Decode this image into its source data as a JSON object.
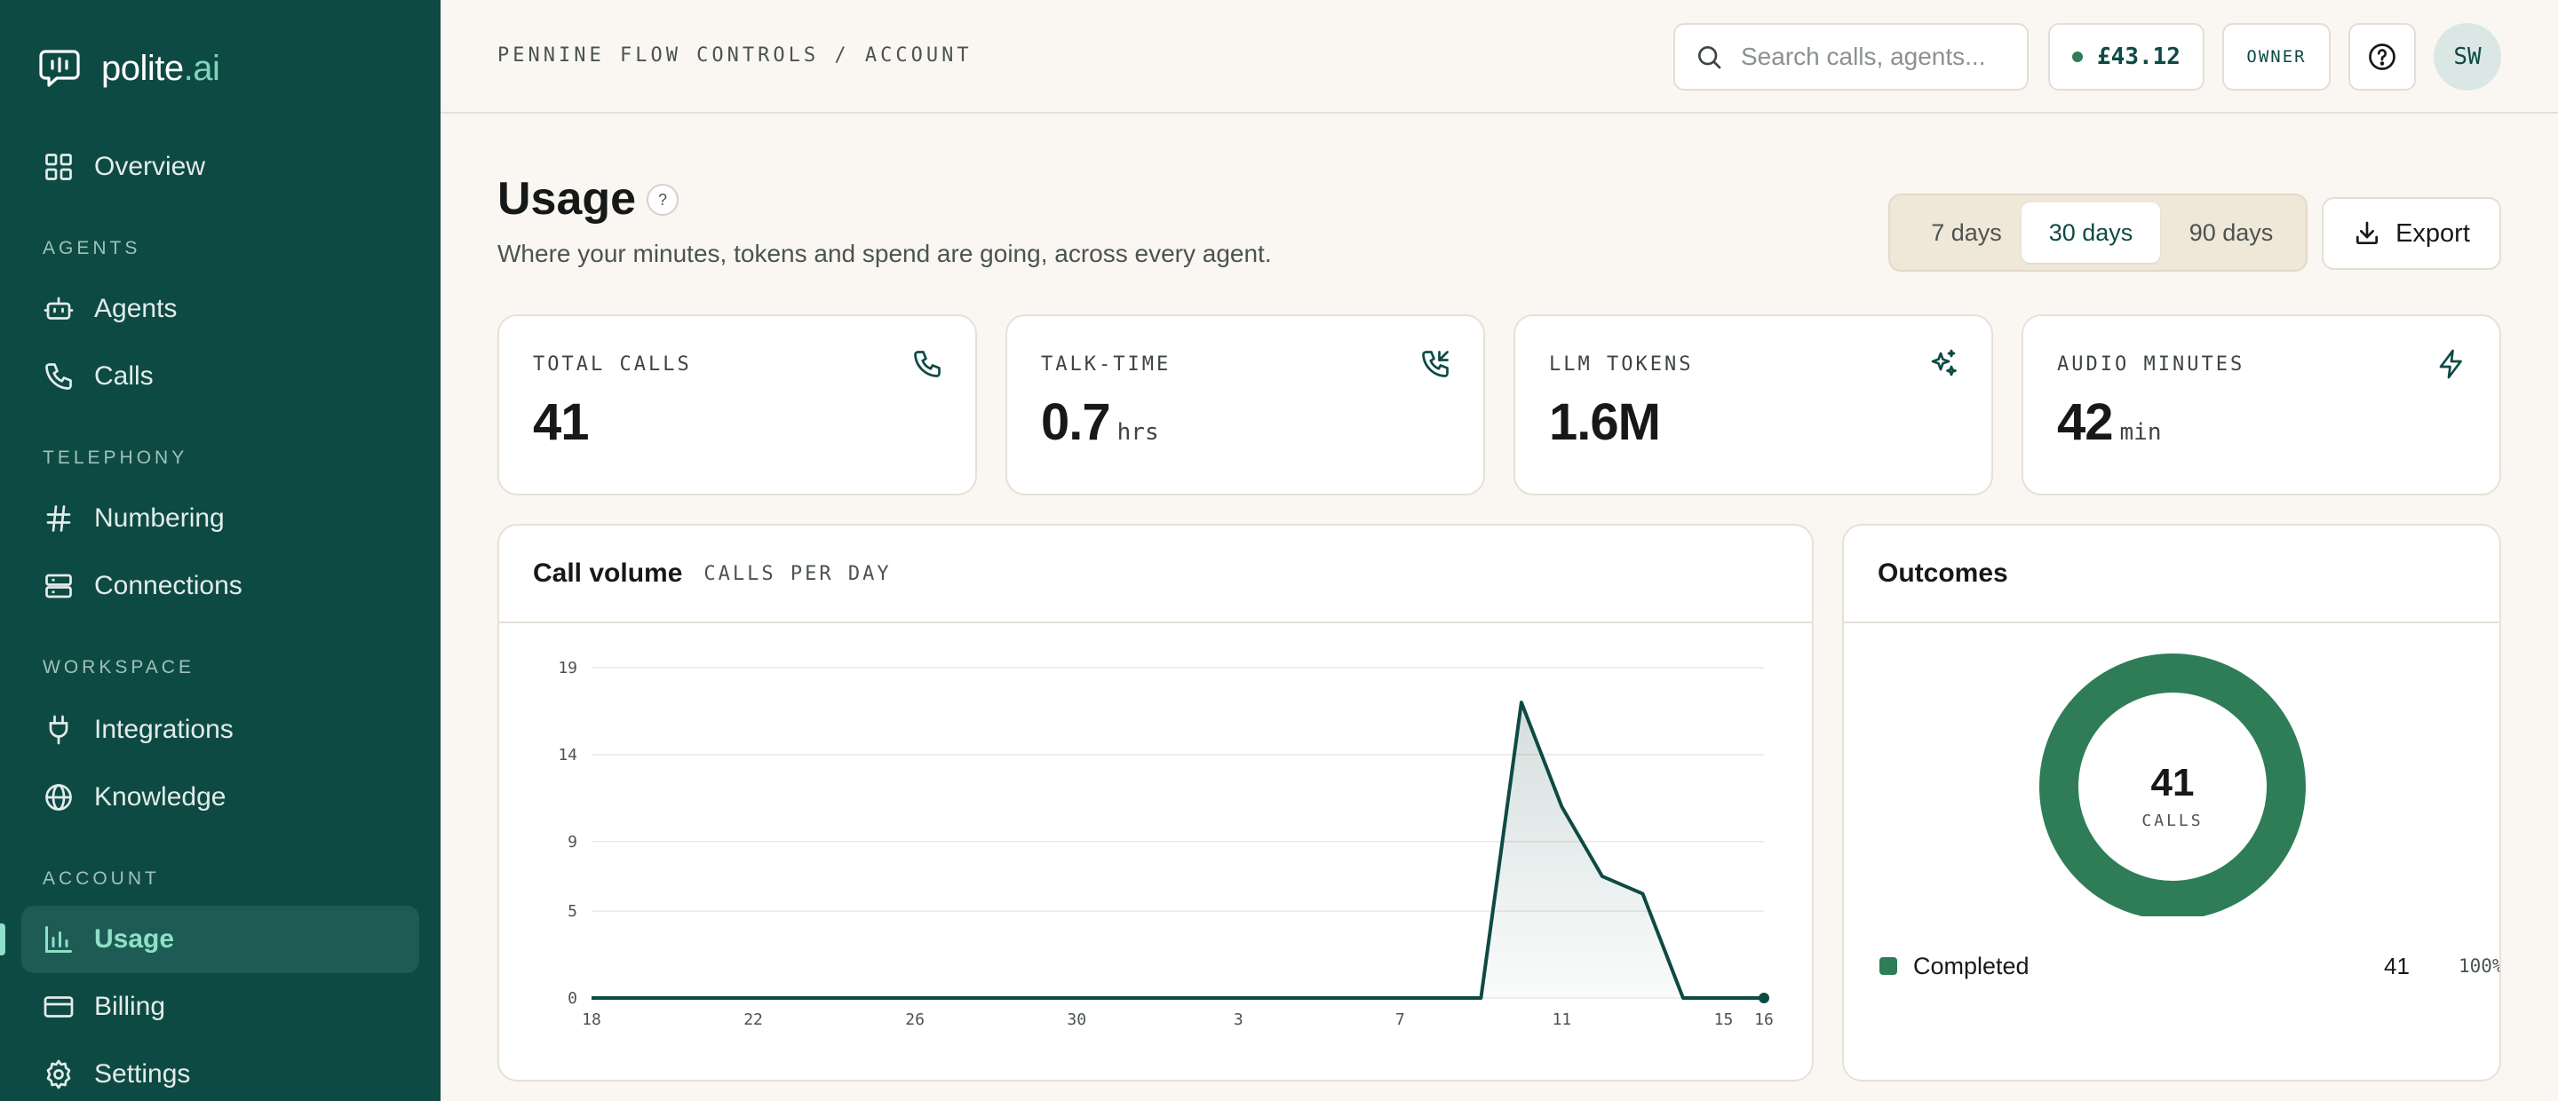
{
  "brand": {
    "name": "polite",
    "suffix": ".ai"
  },
  "sidebar": {
    "top_items": [
      {
        "label": "Overview",
        "icon": "grid-icon"
      }
    ],
    "sections": [
      {
        "title": "AGENTS",
        "items": [
          {
            "label": "Agents",
            "icon": "robot-icon"
          },
          {
            "label": "Calls",
            "icon": "phone-icon"
          }
        ]
      },
      {
        "title": "TELEPHONY",
        "items": [
          {
            "label": "Numbering",
            "icon": "hash-icon"
          },
          {
            "label": "Connections",
            "icon": "server-icon"
          }
        ]
      },
      {
        "title": "WORKSPACE",
        "items": [
          {
            "label": "Integrations",
            "icon": "plug-icon"
          },
          {
            "label": "Knowledge",
            "icon": "globe-icon"
          }
        ]
      },
      {
        "title": "ACCOUNT",
        "items": [
          {
            "label": "Usage",
            "icon": "bar-chart-icon",
            "active": true
          },
          {
            "label": "Billing",
            "icon": "card-icon"
          },
          {
            "label": "Settings",
            "icon": "gear-icon"
          }
        ]
      }
    ]
  },
  "header": {
    "breadcrumb": "PENNINE FLOW CONTROLS / ACCOUNT",
    "search_placeholder": "Search calls, agents...",
    "balance": "£43.12",
    "role": "OWNER",
    "avatar_initials": "SW"
  },
  "page": {
    "title": "Usage",
    "help": "?",
    "subtitle": "Where your minutes, tokens and spend are going, across every agent.",
    "ranges": [
      "7 days",
      "30 days",
      "90 days"
    ],
    "selected_range": "30 days",
    "export_label": "Export"
  },
  "stats": [
    {
      "label": "TOTAL CALLS",
      "value": "41",
      "unit": "",
      "icon": "phone-icon"
    },
    {
      "label": "TALK-TIME",
      "value": "0.7",
      "unit": "hrs",
      "icon": "phone-incoming-icon"
    },
    {
      "label": "LLM TOKENS",
      "value": "1.6M",
      "unit": "",
      "icon": "sparkle-icon"
    },
    {
      "label": "AUDIO MINUTES",
      "value": "42",
      "unit": "min",
      "icon": "bolt-icon"
    }
  ],
  "call_volume": {
    "title": "Call volume",
    "subtitle": "CALLS PER DAY"
  },
  "chart_data": {
    "type": "area",
    "title": "Call volume",
    "subtitle": "CALLS PER DAY",
    "x_ticks": [
      "18",
      "22",
      "26",
      "30",
      "3",
      "7",
      "11",
      "15",
      "16"
    ],
    "y_ticks": [
      0,
      5,
      9,
      14,
      19
    ],
    "ylim": [
      0,
      19
    ],
    "x": [
      "18",
      "19",
      "20",
      "21",
      "22",
      "23",
      "24",
      "25",
      "26",
      "27",
      "28",
      "29",
      "30",
      "31",
      "1",
      "2",
      "3",
      "4",
      "5",
      "6",
      "7",
      "8",
      "9",
      "10",
      "11",
      "12",
      "13",
      "14",
      "15",
      "16"
    ],
    "values": [
      0,
      0,
      0,
      0,
      0,
      0,
      0,
      0,
      0,
      0,
      0,
      0,
      0,
      0,
      0,
      0,
      0,
      0,
      0,
      0,
      0,
      0,
      0,
      17,
      11,
      7,
      6,
      0,
      0,
      0
    ],
    "line_color": "#0e4a44",
    "grid": true
  },
  "outcomes": {
    "title": "Outcomes",
    "center_value": "41",
    "center_label": "CALLS",
    "chart": {
      "type": "pie",
      "slices": [
        {
          "name": "Completed",
          "value": 41,
          "percent": "100%",
          "color": "#2e7d57"
        }
      ]
    }
  },
  "colors": {
    "sidebar": "#0e4a44",
    "accent": "#8ee0c6",
    "success": "#2e7d57",
    "background": "#faf7f2"
  }
}
